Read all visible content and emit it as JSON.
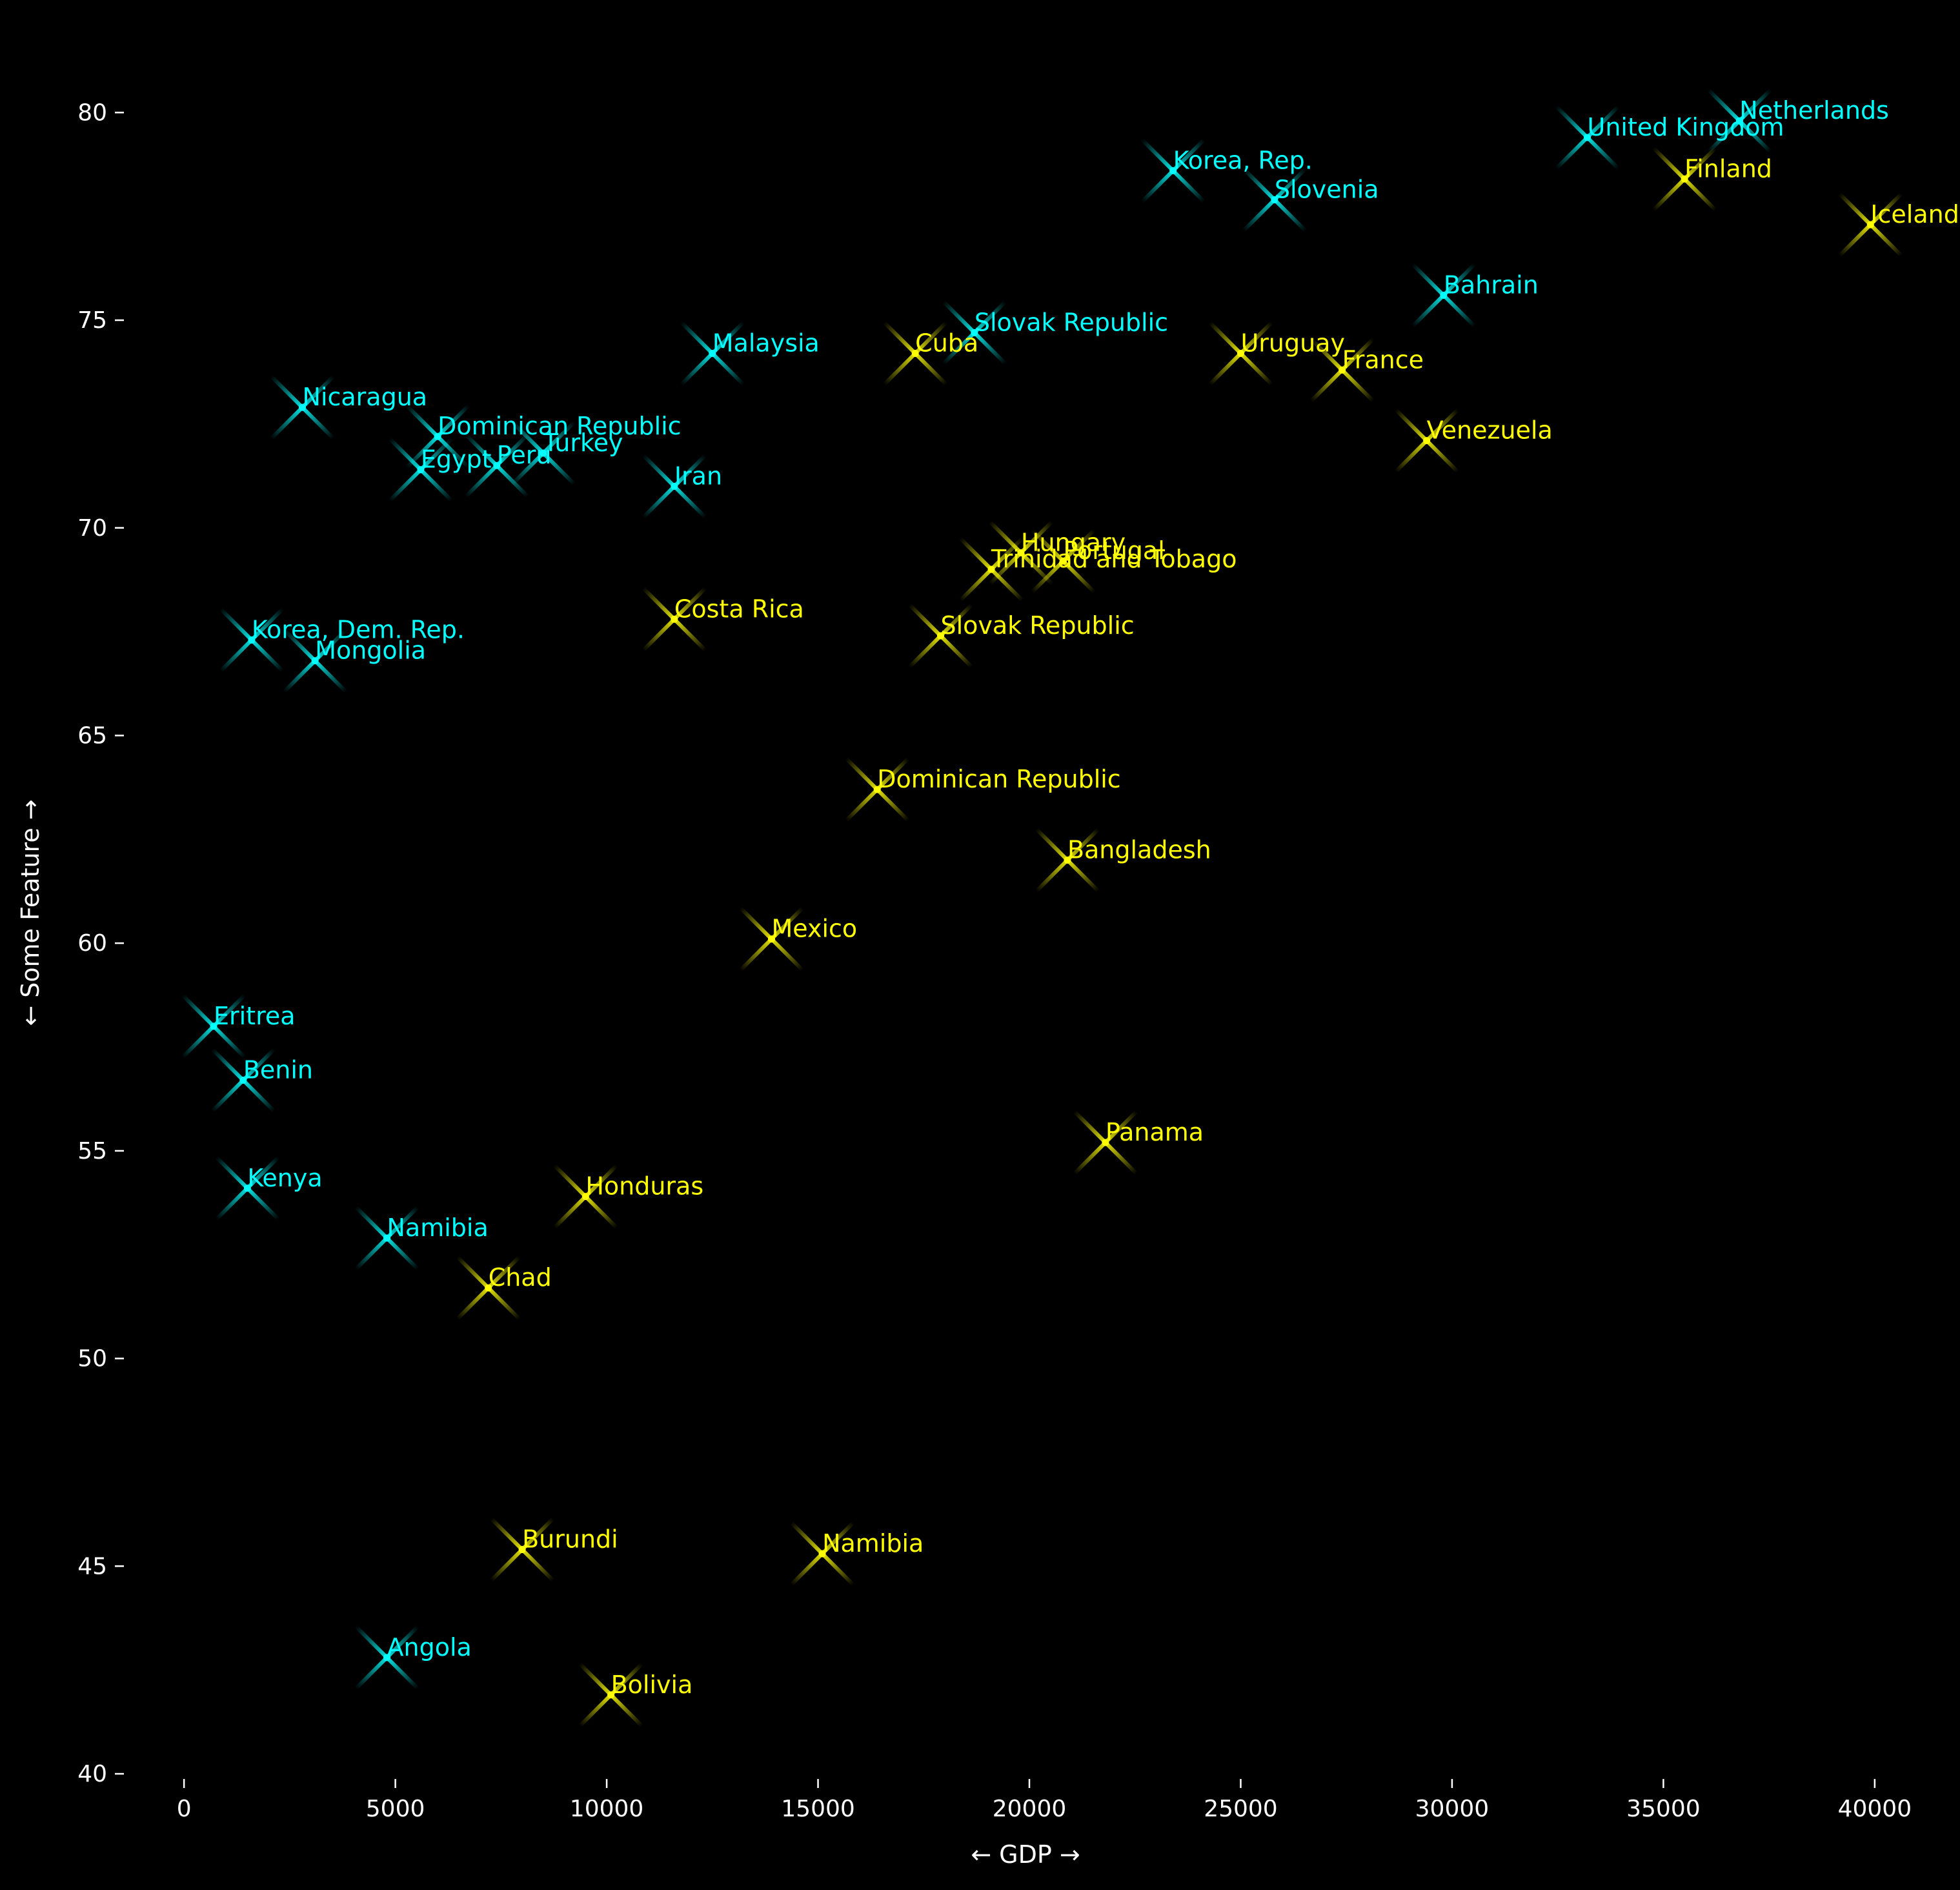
{
  "chart_data": {
    "type": "scatter",
    "title": "",
    "xlabel": "← GDP →",
    "ylabel": "← Some Feature →",
    "xlim": [
      -1300,
      41300
    ],
    "ylim": [
      40,
      81
    ],
    "xticks": [
      0,
      5000,
      10000,
      15000,
      20000,
      25000,
      30000,
      35000,
      40000
    ],
    "yticks": [
      40,
      45,
      50,
      55,
      60,
      65,
      70,
      75,
      80
    ],
    "grid": false,
    "legend": "none",
    "background": "#000000",
    "axis_color": "#ffffff",
    "series": [
      {
        "color": "#00ffff",
        "points": [
          {
            "label": "Netherlands",
            "x": 36800,
            "y": 79.8
          },
          {
            "label": "United Kingdom",
            "x": 33200,
            "y": 79.4
          },
          {
            "label": "Korea, Rep.",
            "x": 23400,
            "y": 78.6
          },
          {
            "label": "Slovenia",
            "x": 25800,
            "y": 77.9
          },
          {
            "label": "Bahrain",
            "x": 29800,
            "y": 75.6
          },
          {
            "label": "Slovak Republic",
            "x": 18700,
            "y": 74.7
          },
          {
            "label": "Malaysia",
            "x": 12500,
            "y": 74.2
          },
          {
            "label": "Nicaragua",
            "x": 2800,
            "y": 72.9
          },
          {
            "label": "Dominican Republic",
            "x": 6000,
            "y": 72.2
          },
          {
            "label": "Turkey",
            "x": 8500,
            "y": 71.8
          },
          {
            "label": "Peru",
            "x": 7400,
            "y": 71.5
          },
          {
            "label": "Egypt",
            "x": 5600,
            "y": 71.4
          },
          {
            "label": "Iran",
            "x": 11600,
            "y": 71.0
          },
          {
            "label": "Korea, Dem. Rep.",
            "x": 1600,
            "y": 67.3
          },
          {
            "label": "Mongolia",
            "x": 3100,
            "y": 66.8
          },
          {
            "label": "Eritrea",
            "x": 700,
            "y": 58.0
          },
          {
            "label": "Benin",
            "x": 1400,
            "y": 56.7
          },
          {
            "label": "Kenya",
            "x": 1500,
            "y": 54.1
          },
          {
            "label": "Namibia",
            "x": 4800,
            "y": 52.9
          },
          {
            "label": "Angola",
            "x": 4800,
            "y": 42.8
          }
        ]
      },
      {
        "color": "#ffff00",
        "points": [
          {
            "label": "Finland",
            "x": 35500,
            "y": 78.4
          },
          {
            "label": "Iceland",
            "x": 39900,
            "y": 77.3
          },
          {
            "label": "Cuba",
            "x": 17300,
            "y": 74.2
          },
          {
            "label": "Uruguay",
            "x": 25000,
            "y": 74.2
          },
          {
            "label": "France",
            "x": 27400,
            "y": 73.8
          },
          {
            "label": "Venezuela",
            "x": 29400,
            "y": 72.1
          },
          {
            "label": "Hungary",
            "x": 19800,
            "y": 69.4
          },
          {
            "label": "Portugal",
            "x": 20800,
            "y": 69.2
          },
          {
            "label": "Trinidad and Tobago",
            "x": 19100,
            "y": 69.0
          },
          {
            "label": "Costa Rica",
            "x": 11600,
            "y": 67.8
          },
          {
            "label": "Slovak Republic",
            "x": 17900,
            "y": 67.4
          },
          {
            "label": "Dominican Republic",
            "x": 16400,
            "y": 63.7
          },
          {
            "label": "Bangladesh",
            "x": 20900,
            "y": 62.0
          },
          {
            "label": "Mexico",
            "x": 13900,
            "y": 60.1
          },
          {
            "label": "Panama",
            "x": 21800,
            "y": 55.2
          },
          {
            "label": "Honduras",
            "x": 9500,
            "y": 53.9
          },
          {
            "label": "Chad",
            "x": 7200,
            "y": 51.7
          },
          {
            "label": "Burundi",
            "x": 8000,
            "y": 45.4
          },
          {
            "label": "Namibia",
            "x": 15100,
            "y": 45.3
          },
          {
            "label": "Bolivia",
            "x": 10100,
            "y": 41.9
          }
        ]
      }
    ]
  }
}
